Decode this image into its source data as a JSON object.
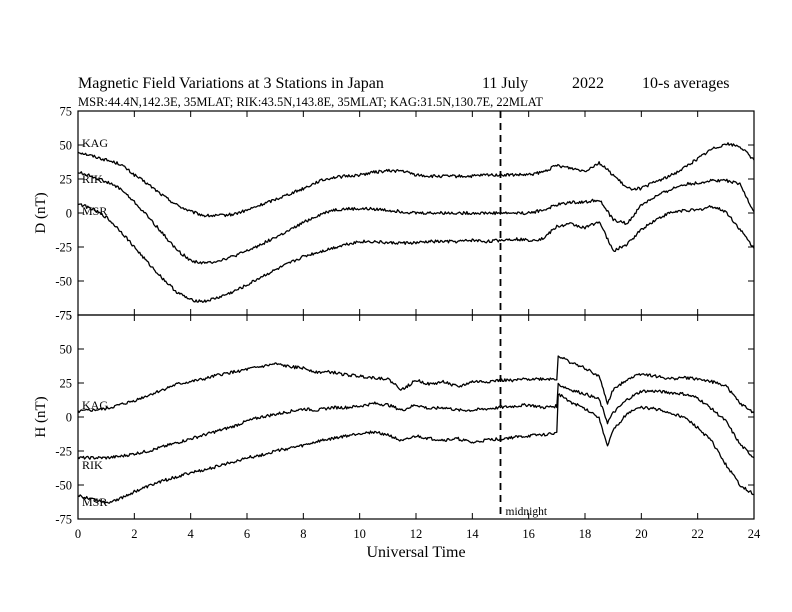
{
  "header": {
    "title": "Magnetic Field Variations at 3 Stations in Japan",
    "date": "11 July",
    "year": "2022",
    "averaging": "10-s averages",
    "stations_line": "MSR:44.4N,142.3E, 35MLAT;  RIK:43.5N,143.8E, 35MLAT;  KAG:31.5N,130.7E, 22MLAT"
  },
  "chart_data": [
    {
      "type": "line",
      "panel": "D",
      "ylabel": "D (nT)",
      "xlabel": "",
      "ylim": [
        -75,
        75
      ],
      "xlim": [
        0,
        24
      ],
      "xticks": [
        0,
        2,
        4,
        6,
        8,
        10,
        12,
        14,
        16,
        18,
        20,
        22,
        24
      ],
      "yticks": [
        75,
        50,
        25,
        0,
        -25,
        -50,
        -75
      ],
      "grid": false,
      "vertical_marker": {
        "x": 15,
        "style": "dashed"
      },
      "series": [
        {
          "name": "KAG",
          "x": [
            0,
            0.5,
            1,
            1.5,
            2,
            2.5,
            3,
            3.5,
            4,
            4.5,
            5,
            5.5,
            6,
            6.5,
            7,
            7.5,
            8,
            8.5,
            9,
            9.5,
            10,
            10.5,
            11,
            11.5,
            12,
            12.5,
            13,
            13.5,
            14,
            14.5,
            15,
            15.5,
            16,
            16.5,
            17,
            17.5,
            18,
            18.5,
            19,
            19.5,
            20,
            20.5,
            21,
            21.5,
            22,
            22.5,
            23,
            23.5,
            24
          ],
          "y": [
            45,
            42,
            39,
            36,
            28,
            21,
            13,
            6,
            1,
            -2,
            -2,
            -1,
            2,
            6,
            10,
            14,
            18,
            23,
            26,
            27,
            28,
            30,
            31,
            31,
            28,
            27,
            27,
            27,
            27,
            28,
            28,
            28,
            28,
            30,
            35,
            33,
            31,
            37,
            28,
            18,
            18,
            23,
            27,
            33,
            40,
            47,
            51,
            49,
            39
          ]
        },
        {
          "name": "RIK",
          "x": [
            0,
            0.5,
            1,
            1.5,
            2,
            2.5,
            3,
            3.5,
            4,
            4.5,
            5,
            5.5,
            6,
            6.5,
            7,
            7.5,
            8,
            8.5,
            9,
            9.5,
            10,
            10.5,
            11,
            11.5,
            12,
            12.5,
            13,
            13.5,
            14,
            14.5,
            15,
            15.5,
            16,
            16.5,
            17,
            17.5,
            18,
            18.5,
            19,
            19.5,
            20,
            20.5,
            21,
            21.5,
            22,
            22.5,
            23,
            23.5,
            24
          ],
          "y": [
            30,
            27,
            23,
            18,
            8,
            -3,
            -15,
            -27,
            -35,
            -37,
            -35,
            -32,
            -28,
            -23,
            -18,
            -13,
            -7,
            -2,
            2,
            3,
            3,
            3,
            2,
            1,
            0,
            0,
            0,
            0,
            0,
            0,
            0,
            0,
            0,
            2,
            6,
            8,
            8,
            10,
            -5,
            -8,
            6,
            12,
            17,
            21,
            22,
            24,
            24,
            21,
            1
          ]
        },
        {
          "name": "MSR",
          "x": [
            0,
            0.5,
            1,
            1.5,
            2,
            2.5,
            3,
            3.5,
            4,
            4.5,
            5,
            5.5,
            6,
            6.5,
            7,
            7.5,
            8,
            8.5,
            9,
            9.5,
            10,
            10.5,
            11,
            11.5,
            12,
            12.5,
            13,
            13.5,
            14,
            14.5,
            15,
            15.5,
            16,
            16.5,
            17,
            17.5,
            18,
            18.5,
            19,
            19.5,
            20,
            20.5,
            21,
            21.5,
            22,
            22.5,
            23,
            23.5,
            24
          ],
          "y": [
            7,
            3,
            -3,
            -13,
            -25,
            -37,
            -48,
            -58,
            -64,
            -65,
            -62,
            -58,
            -53,
            -47,
            -42,
            -37,
            -32,
            -29,
            -26,
            -23,
            -21,
            -21,
            -22,
            -22,
            -22,
            -21,
            -21,
            -21,
            -20,
            -21,
            -20,
            -19,
            -20,
            -19,
            -10,
            -8,
            -11,
            -6,
            -28,
            -23,
            -12,
            -5,
            0,
            2,
            2,
            5,
            1,
            -12,
            -26
          ]
        }
      ]
    },
    {
      "type": "line",
      "panel": "H",
      "ylabel": "H (nT)",
      "xlabel": "Universal Time",
      "ylim": [
        -75,
        75
      ],
      "xlim": [
        0,
        24
      ],
      "xticks": [
        0,
        2,
        4,
        6,
        8,
        10,
        12,
        14,
        16,
        18,
        20,
        22,
        24
      ],
      "xticklabels": [
        "0",
        "2",
        "4",
        "6",
        "8",
        "10",
        "12",
        "14",
        "16",
        "18",
        "20",
        "22",
        "24"
      ],
      "yticks": [
        75,
        50,
        25,
        0,
        -25,
        -50,
        -75
      ],
      "grid": false,
      "vertical_marker": {
        "x": 15,
        "style": "dashed",
        "label": "midnight"
      },
      "series": [
        {
          "name": "KAG",
          "x": [
            0,
            0.5,
            1,
            1.5,
            2,
            2.5,
            3,
            3.5,
            4,
            4.5,
            5,
            5.5,
            6,
            6.5,
            7,
            7.5,
            8,
            8.5,
            9,
            9.5,
            10,
            10.5,
            11,
            11.5,
            12,
            12.5,
            13,
            13.5,
            14,
            14.5,
            15,
            15.5,
            16,
            16.5,
            17,
            17.05,
            17.5,
            18,
            18.5,
            18.8,
            19,
            19.5,
            20,
            20.5,
            21,
            21.5,
            22,
            22.5,
            23,
            23.5,
            24
          ],
          "y": [
            4,
            5,
            6,
            9,
            12,
            16,
            20,
            24,
            26,
            28,
            31,
            33,
            35,
            37,
            39,
            37,
            36,
            33,
            33,
            31,
            30,
            29,
            28,
            20,
            27,
            24,
            26,
            22,
            26,
            26,
            27,
            27,
            28,
            28,
            28,
            45,
            40,
            36,
            30,
            10,
            20,
            28,
            32,
            30,
            28,
            29,
            28,
            26,
            23,
            10,
            3
          ]
        },
        {
          "name": "RIK",
          "x": [
            0,
            0.5,
            1,
            1.5,
            2,
            2.5,
            3,
            3.5,
            4,
            4.5,
            5,
            5.5,
            6,
            6.5,
            7,
            7.5,
            8,
            8.5,
            9,
            9.5,
            10,
            10.5,
            11,
            11.5,
            12,
            12.5,
            13,
            13.5,
            14,
            14.5,
            15,
            15.5,
            16,
            16.5,
            17,
            17.05,
            17.5,
            18,
            18.5,
            18.8,
            19,
            19.5,
            20,
            20.5,
            21,
            21.5,
            22,
            22.5,
            23,
            23.5,
            24
          ],
          "y": [
            -30,
            -30,
            -30,
            -29,
            -27,
            -25,
            -22,
            -19,
            -16,
            -13,
            -10,
            -7,
            -3,
            0,
            2,
            4,
            6,
            5,
            7,
            7,
            8,
            10,
            9,
            5,
            9,
            6,
            7,
            5,
            5,
            6,
            7,
            8,
            9,
            7,
            8,
            24,
            20,
            17,
            13,
            -4,
            3,
            13,
            19,
            19,
            18,
            17,
            14,
            6,
            -3,
            -20,
            -30
          ]
        },
        {
          "name": "MSR",
          "x": [
            0,
            0.5,
            1,
            1.5,
            2,
            2.5,
            3,
            3.5,
            4,
            4.5,
            5,
            5.5,
            6,
            6.5,
            7,
            7.5,
            8,
            8.5,
            9,
            9.5,
            10,
            10.5,
            11,
            11.5,
            12,
            12.5,
            13,
            13.5,
            14,
            14.5,
            15,
            15.5,
            16,
            16.5,
            17,
            17.05,
            17.5,
            18,
            18.5,
            18.8,
            19,
            19.5,
            20,
            20.5,
            21,
            21.5,
            22,
            22.5,
            23,
            23.5,
            24
          ],
          "y": [
            -58,
            -60,
            -63,
            -60,
            -55,
            -51,
            -47,
            -44,
            -41,
            -39,
            -36,
            -33,
            -30,
            -28,
            -25,
            -23,
            -21,
            -18,
            -16,
            -14,
            -12,
            -11,
            -13,
            -18,
            -14,
            -16,
            -17,
            -16,
            -19,
            -17,
            -16,
            -15,
            -14,
            -13,
            -12,
            17,
            11,
            6,
            0,
            -22,
            -10,
            3,
            7,
            6,
            3,
            0,
            -8,
            -18,
            -35,
            -50,
            -57
          ]
        }
      ]
    }
  ]
}
